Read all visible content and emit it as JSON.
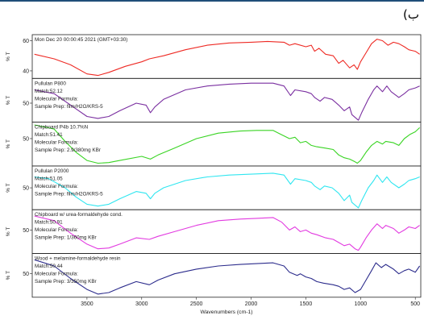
{
  "corner_label": "(ب",
  "chart_data": {
    "type": "line",
    "xlabel": "Wavenumbers (cm-1)",
    "xlim": [
      4000,
      450
    ],
    "x_ticks": [
      3500,
      3000,
      2500,
      2000,
      1500,
      1000,
      500
    ],
    "panels": [
      {
        "name": "sample",
        "ylabel": "% T",
        "y_ticks": [
          60,
          40
        ],
        "ylim": [
          35,
          64
        ],
        "lines": [
          "Mon Dec 20 00:00:45 2021 (GMT+03:30)"
        ],
        "color": "#ee2a24",
        "points": [
          [
            3980,
            51
          ],
          [
            3800,
            48
          ],
          [
            3650,
            44
          ],
          [
            3500,
            38
          ],
          [
            3400,
            37
          ],
          [
            3300,
            39
          ],
          [
            3150,
            43
          ],
          [
            3000,
            46
          ],
          [
            2930,
            48
          ],
          [
            2800,
            50
          ],
          [
            2600,
            54
          ],
          [
            2400,
            57
          ],
          [
            2200,
            58.5
          ],
          [
            2000,
            59
          ],
          [
            1850,
            59.5
          ],
          [
            1700,
            59
          ],
          [
            1650,
            57
          ],
          [
            1600,
            58
          ],
          [
            1500,
            56
          ],
          [
            1450,
            57
          ],
          [
            1420,
            53
          ],
          [
            1380,
            55
          ],
          [
            1320,
            51
          ],
          [
            1250,
            50
          ],
          [
            1200,
            45
          ],
          [
            1160,
            47
          ],
          [
            1100,
            42
          ],
          [
            1060,
            44
          ],
          [
            1030,
            41
          ],
          [
            1000,
            46
          ],
          [
            950,
            52
          ],
          [
            900,
            58
          ],
          [
            850,
            61
          ],
          [
            800,
            60
          ],
          [
            750,
            57
          ],
          [
            700,
            59
          ],
          [
            650,
            58
          ],
          [
            600,
            56
          ],
          [
            560,
            54
          ],
          [
            500,
            53
          ],
          [
            460,
            51
          ]
        ]
      },
      {
        "name": "Pullulan P800",
        "ylabel": "% T",
        "y_ticks": [
          50
        ],
        "ylim": [
          40,
          63
        ],
        "lines": [
          "Pullulan P800",
          "Match:52.12",
          "Molecular Formula:",
          "Sample Prep:  film/H2O/KRS-5"
        ],
        "color": "#7a2fa0",
        "points": [
          [
            3980,
            57
          ],
          [
            3800,
            55
          ],
          [
            3600,
            47
          ],
          [
            3500,
            43
          ],
          [
            3400,
            42
          ],
          [
            3300,
            43
          ],
          [
            3200,
            46
          ],
          [
            3050,
            50
          ],
          [
            2960,
            49
          ],
          [
            2920,
            45
          ],
          [
            2880,
            48
          ],
          [
            2800,
            52
          ],
          [
            2600,
            57
          ],
          [
            2400,
            59
          ],
          [
            2200,
            60
          ],
          [
            2000,
            60.5
          ],
          [
            1800,
            60.5
          ],
          [
            1700,
            59
          ],
          [
            1640,
            54
          ],
          [
            1600,
            57
          ],
          [
            1500,
            56
          ],
          [
            1450,
            55
          ],
          [
            1420,
            53
          ],
          [
            1370,
            51
          ],
          [
            1330,
            53
          ],
          [
            1260,
            52
          ],
          [
            1200,
            49
          ],
          [
            1150,
            46
          ],
          [
            1100,
            48
          ],
          [
            1080,
            44
          ],
          [
            1020,
            41
          ],
          [
            990,
            45
          ],
          [
            930,
            52
          ],
          [
            880,
            57
          ],
          [
            850,
            59
          ],
          [
            800,
            56
          ],
          [
            760,
            59
          ],
          [
            720,
            56
          ],
          [
            650,
            53
          ],
          [
            600,
            55
          ],
          [
            560,
            57
          ],
          [
            500,
            58
          ],
          [
            460,
            59
          ]
        ]
      },
      {
        "name": "Chipboard P4b 10.7%N",
        "ylabel": "% T",
        "y_ticks": [
          50
        ],
        "ylim": [
          30,
          62
        ],
        "lines": [
          "Chipboard P4b 10.7%N",
          "Match:51.41",
          "Molecular Formula:",
          "Sample Prep:  2.9/380mg KBr"
        ],
        "color": "#39d423",
        "points": [
          [
            3980,
            60
          ],
          [
            3800,
            57
          ],
          [
            3700,
            48
          ],
          [
            3600,
            40
          ],
          [
            3500,
            34
          ],
          [
            3400,
            32
          ],
          [
            3300,
            32.5
          ],
          [
            3200,
            34
          ],
          [
            3000,
            37
          ],
          [
            2920,
            35
          ],
          [
            2850,
            38
          ],
          [
            2700,
            43
          ],
          [
            2500,
            50
          ],
          [
            2300,
            54
          ],
          [
            2100,
            55.5
          ],
          [
            1950,
            56
          ],
          [
            1800,
            56
          ],
          [
            1750,
            54
          ],
          [
            1700,
            52
          ],
          [
            1650,
            50
          ],
          [
            1600,
            51
          ],
          [
            1550,
            47
          ],
          [
            1500,
            48
          ],
          [
            1450,
            45
          ],
          [
            1400,
            44
          ],
          [
            1320,
            43
          ],
          [
            1250,
            42
          ],
          [
            1200,
            38
          ],
          [
            1150,
            36
          ],
          [
            1100,
            35
          ],
          [
            1050,
            33
          ],
          [
            1030,
            32
          ],
          [
            1000,
            34
          ],
          [
            950,
            40
          ],
          [
            900,
            45
          ],
          [
            850,
            48
          ],
          [
            800,
            46
          ],
          [
            770,
            48
          ],
          [
            700,
            47
          ],
          [
            650,
            45
          ],
          [
            600,
            50
          ],
          [
            550,
            53
          ],
          [
            500,
            55
          ],
          [
            460,
            58
          ]
        ]
      },
      {
        "name": "Pullulan P2000",
        "ylabel": "% T",
        "y_ticks": [
          50
        ],
        "ylim": [
          38,
          62
        ],
        "lines": [
          "Pullulan P2000",
          "Match:51.05",
          "Molecular Formula:",
          "Sample Prep:  film/H2O/KRS-5"
        ],
        "color": "#2fe6f0",
        "points": [
          [
            3980,
            56
          ],
          [
            3850,
            55
          ],
          [
            3700,
            50
          ],
          [
            3600,
            45
          ],
          [
            3500,
            41
          ],
          [
            3400,
            40
          ],
          [
            3300,
            41
          ],
          [
            3200,
            44
          ],
          [
            3050,
            48
          ],
          [
            2960,
            47
          ],
          [
            2920,
            44
          ],
          [
            2880,
            47
          ],
          [
            2800,
            50
          ],
          [
            2600,
            54
          ],
          [
            2400,
            56
          ],
          [
            2200,
            57
          ],
          [
            2000,
            57.5
          ],
          [
            1800,
            58
          ],
          [
            1700,
            57
          ],
          [
            1640,
            52
          ],
          [
            1600,
            55
          ],
          [
            1500,
            54
          ],
          [
            1450,
            53
          ],
          [
            1420,
            51
          ],
          [
            1370,
            49
          ],
          [
            1330,
            51
          ],
          [
            1260,
            50
          ],
          [
            1200,
            47
          ],
          [
            1150,
            43
          ],
          [
            1100,
            46
          ],
          [
            1080,
            42
          ],
          [
            1020,
            39
          ],
          [
            990,
            43
          ],
          [
            930,
            50
          ],
          [
            880,
            54
          ],
          [
            850,
            57
          ],
          [
            800,
            53
          ],
          [
            760,
            56
          ],
          [
            720,
            53
          ],
          [
            650,
            50
          ],
          [
            600,
            52
          ],
          [
            560,
            54
          ],
          [
            500,
            55
          ],
          [
            460,
            56
          ]
        ]
      },
      {
        "name": "Chipboard w/ urea-formaldehyde cond.",
        "ylabel": "% T",
        "y_ticks": [
          50
        ],
        "ylim": [
          35,
          63
        ],
        "lines": [
          "Chipboard w/ urea-formaldehyde cond.",
          "Match:50.91",
          "Molecular Formula:",
          "Sample Prep:  1/360mg KBr"
        ],
        "color": "#e23ae0",
        "points": [
          [
            3980,
            59
          ],
          [
            3800,
            56
          ],
          [
            3650,
            48
          ],
          [
            3500,
            41
          ],
          [
            3400,
            38
          ],
          [
            3300,
            38.5
          ],
          [
            3200,
            41
          ],
          [
            3050,
            45
          ],
          [
            2930,
            44
          ],
          [
            2850,
            46
          ],
          [
            2700,
            49
          ],
          [
            2500,
            53
          ],
          [
            2300,
            56
          ],
          [
            2100,
            57
          ],
          [
            1950,
            57.5
          ],
          [
            1800,
            58
          ],
          [
            1720,
            55
          ],
          [
            1650,
            50
          ],
          [
            1600,
            52
          ],
          [
            1550,
            49
          ],
          [
            1500,
            50
          ],
          [
            1450,
            48
          ],
          [
            1400,
            47
          ],
          [
            1320,
            45
          ],
          [
            1250,
            44
          ],
          [
            1200,
            42
          ],
          [
            1150,
            40
          ],
          [
            1100,
            41
          ],
          [
            1050,
            38
          ],
          [
            1020,
            37
          ],
          [
            1000,
            39
          ],
          [
            950,
            45
          ],
          [
            900,
            50
          ],
          [
            850,
            54
          ],
          [
            800,
            51
          ],
          [
            770,
            53
          ],
          [
            700,
            51
          ],
          [
            650,
            48
          ],
          [
            600,
            50
          ],
          [
            560,
            52
          ],
          [
            500,
            51
          ],
          [
            460,
            53
          ]
        ]
      },
      {
        "name": "Wood + melamine-formaldehyde resin",
        "ylabel": "% T",
        "y_ticks": [
          50
        ],
        "ylim": [
          35,
          63
        ],
        "lines": [
          "Wood + melamine-formaldehyde resin",
          "Match:50.44",
          "Molecular Formula:",
          "Sample Prep:  3/350mg KBr"
        ],
        "color": "#2c2c8c",
        "points": [
          [
            3980,
            59
          ],
          [
            3800,
            55
          ],
          [
            3650,
            47
          ],
          [
            3500,
            40
          ],
          [
            3400,
            37
          ],
          [
            3300,
            38
          ],
          [
            3200,
            41
          ],
          [
            3050,
            45
          ],
          [
            2930,
            43
          ],
          [
            2850,
            46
          ],
          [
            2700,
            50
          ],
          [
            2500,
            53
          ],
          [
            2300,
            55
          ],
          [
            2100,
            56
          ],
          [
            1950,
            56.5
          ],
          [
            1800,
            57
          ],
          [
            1700,
            55
          ],
          [
            1650,
            51
          ],
          [
            1580,
            49
          ],
          [
            1550,
            50
          ],
          [
            1500,
            48
          ],
          [
            1450,
            47
          ],
          [
            1400,
            45
          ],
          [
            1340,
            44
          ],
          [
            1250,
            43
          ],
          [
            1200,
            42
          ],
          [
            1150,
            40
          ],
          [
            1100,
            41
          ],
          [
            1050,
            38
          ],
          [
            1000,
            40
          ],
          [
            950,
            46
          ],
          [
            900,
            52
          ],
          [
            860,
            57
          ],
          [
            810,
            54
          ],
          [
            770,
            56
          ],
          [
            700,
            53
          ],
          [
            650,
            50
          ],
          [
            600,
            52
          ],
          [
            560,
            53
          ],
          [
            500,
            51
          ],
          [
            460,
            55
          ]
        ]
      }
    ]
  }
}
